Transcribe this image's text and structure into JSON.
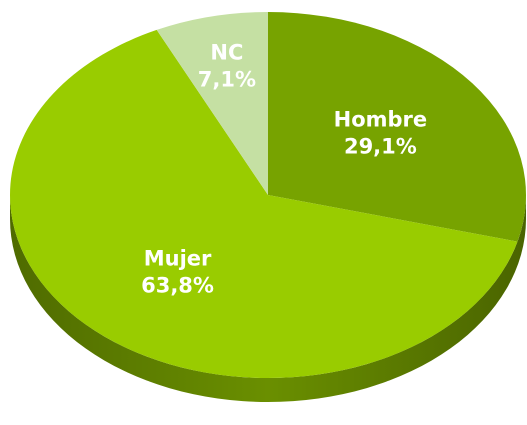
{
  "chart_data": {
    "type": "pie",
    "categories": [
      "Hombre",
      "Mujer",
      "NC"
    ],
    "values": [
      29.1,
      63.8,
      7.1
    ],
    "value_labels": [
      "29,1%",
      "63,8%",
      "7,1%"
    ],
    "colors": [
      "#77a300",
      "#99cc00",
      "#c5e0a3"
    ]
  }
}
